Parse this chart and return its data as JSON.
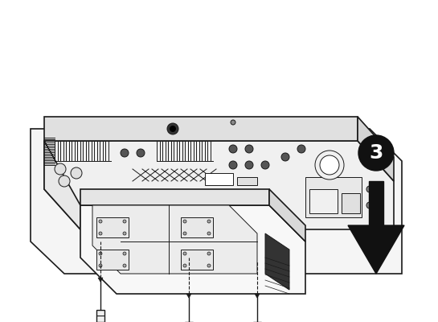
{
  "bg_color": "#ffffff",
  "line_color": "#1a1a1a",
  "fill_color": "#ffffff",
  "dark_fill": "#2a2a2a",
  "gray_fill": "#888888",
  "light_gray": "#cccccc",
  "step_number": "3",
  "fig_width": 5.45,
  "fig_height": 4.0,
  "dpi": 100
}
